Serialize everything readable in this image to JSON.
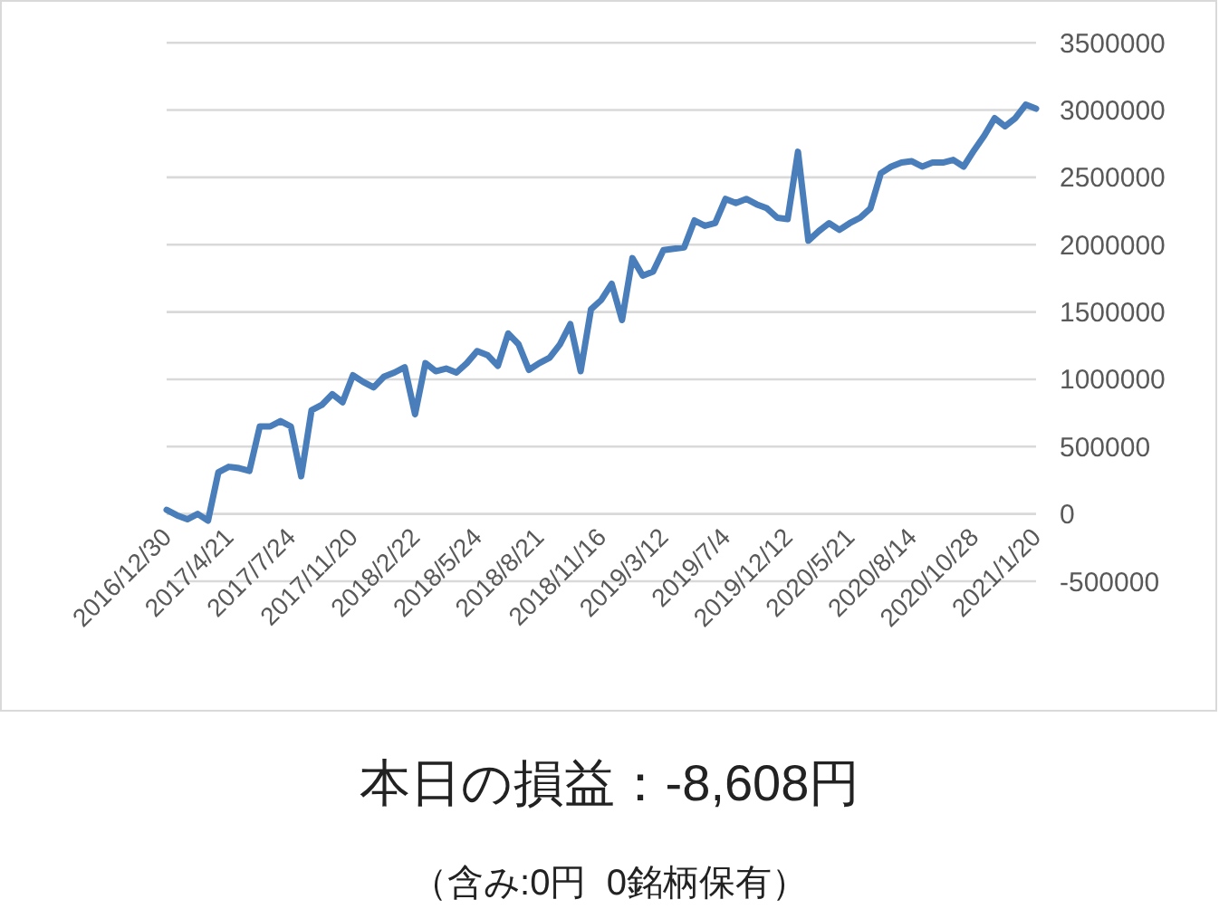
{
  "chart_data": {
    "type": "line",
    "title": "本日の損益：-8,608円",
    "subtitle": "（含み:0円  0銘柄保有）",
    "categories": [
      "2016/12/30",
      null,
      null,
      null,
      null,
      null,
      "2017/4/21",
      null,
      null,
      null,
      null,
      null,
      "2017/7/24",
      null,
      null,
      null,
      null,
      null,
      "2017/11/20",
      null,
      null,
      null,
      null,
      null,
      "2018/2/22",
      null,
      null,
      null,
      null,
      null,
      "2018/5/24",
      null,
      null,
      null,
      null,
      null,
      "2018/8/21",
      null,
      null,
      null,
      null,
      null,
      "2018/11/16",
      null,
      null,
      null,
      null,
      null,
      "2019/3/12",
      null,
      null,
      null,
      null,
      null,
      "2019/7/4",
      null,
      null,
      null,
      null,
      null,
      "2019/12/12",
      null,
      null,
      null,
      null,
      null,
      "2020/5/21",
      null,
      null,
      null,
      null,
      null,
      "2020/8/14",
      null,
      null,
      null,
      null,
      null,
      "2020/10/28",
      null,
      null,
      null,
      null,
      null,
      "2021/1/20"
    ],
    "series": [
      {
        "color": "#4a7ebb",
        "values": [
          30000,
          -10000,
          -40000,
          0,
          -50000,
          310000,
          350000,
          340000,
          320000,
          650000,
          650000,
          690000,
          650000,
          280000,
          770000,
          810000,
          890000,
          830000,
          1030000,
          980000,
          940000,
          1020000,
          1050000,
          1090000,
          740000,
          1120000,
          1060000,
          1080000,
          1050000,
          1120000,
          1210000,
          1180000,
          1100000,
          1340000,
          1260000,
          1070000,
          1120000,
          1160000,
          1260000,
          1410000,
          1060000,
          1520000,
          1590000,
          1710000,
          1440000,
          1900000,
          1770000,
          1800000,
          1960000,
          1970000,
          1980000,
          2180000,
          2140000,
          2160000,
          2340000,
          2310000,
          2340000,
          2300000,
          2270000,
          2200000,
          2190000,
          2690000,
          2030000,
          2100000,
          2160000,
          2110000,
          2160000,
          2200000,
          2270000,
          2530000,
          2580000,
          2610000,
          2620000,
          2580000,
          2610000,
          2610000,
          2630000,
          2580000,
          2700000,
          2810000,
          2940000,
          2880000,
          2940000,
          3040000,
          3010000
        ]
      }
    ],
    "ylim": [
      -500000,
      3500000
    ],
    "yticks": [
      -500000,
      0,
      500000,
      1000000,
      1500000,
      2000000,
      2500000,
      3000000,
      3500000
    ],
    "grid": "y"
  }
}
